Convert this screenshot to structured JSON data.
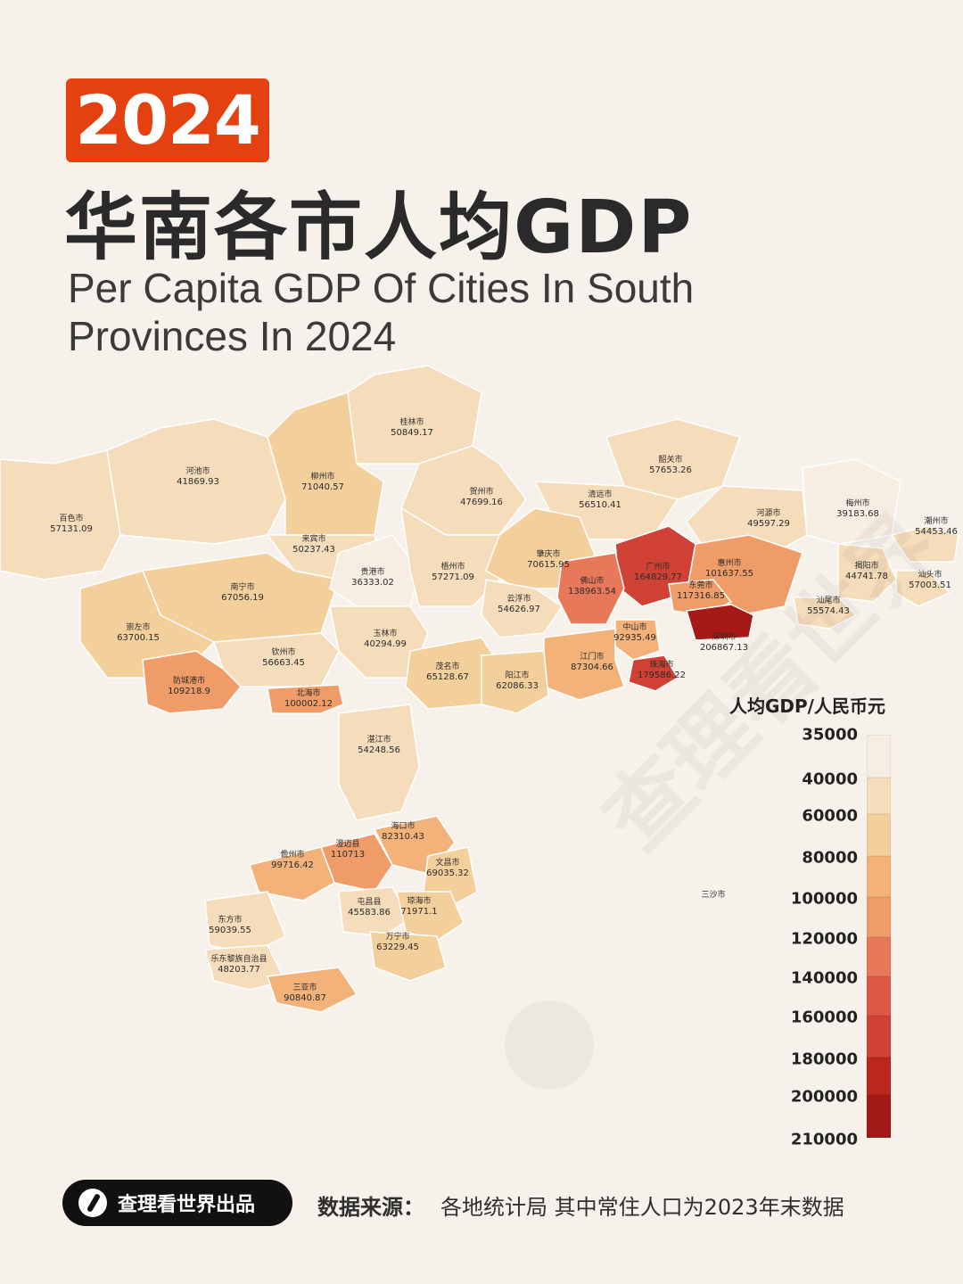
{
  "header": {
    "year": "2024",
    "title_zh": "华南各市人均GDP",
    "title_en": "Per Capita GDP Of Cities In South Provinces In 2024"
  },
  "legend": {
    "title": "人均GDP/人民币元",
    "ticks": [
      "35000",
      "40000",
      "60000",
      "80000",
      "100000",
      "120000",
      "140000",
      "160000",
      "180000",
      "200000",
      "210000"
    ],
    "colors": [
      "#f7ede2",
      "#f5dcba",
      "#f3cf9c",
      "#f2b27a",
      "#ef9c68",
      "#e8785a",
      "#dc5a45",
      "#cf4134",
      "#b9271f",
      "#a51a17",
      "#a11a17"
    ]
  },
  "chart_data": {
    "type": "choropleth",
    "unit": "人民币元",
    "regions": [
      {
        "name": "百色市",
        "value": "57131.09"
      },
      {
        "name": "河池市",
        "value": "41869.93"
      },
      {
        "name": "柳州市",
        "value": "71040.57"
      },
      {
        "name": "桂林市",
        "value": "50849.17"
      },
      {
        "name": "贺州市",
        "value": "47699.16"
      },
      {
        "name": "来宾市",
        "value": "50237.43"
      },
      {
        "name": "南宁市",
        "value": "67056.19"
      },
      {
        "name": "贵港市",
        "value": "36333.02"
      },
      {
        "name": "梧州市",
        "value": "57271.09"
      },
      {
        "name": "崇左市",
        "value": "63700.15"
      },
      {
        "name": "玉林市",
        "value": "40294.99"
      },
      {
        "name": "钦州市",
        "value": "56663.45"
      },
      {
        "name": "防城港市",
        "value": "109218.9"
      },
      {
        "name": "北海市",
        "value": "100002.12"
      },
      {
        "name": "韶关市",
        "value": "57653.26"
      },
      {
        "name": "清远市",
        "value": "56510.41"
      },
      {
        "name": "河源市",
        "value": "49597.29"
      },
      {
        "name": "梅州市",
        "value": "39183.68"
      },
      {
        "name": "潮州市",
        "value": "54453.46"
      },
      {
        "name": "肇庆市",
        "value": "70615.95"
      },
      {
        "name": "广州市",
        "value": "164829.77"
      },
      {
        "name": "惠州市",
        "value": "101637.55"
      },
      {
        "name": "揭阳市",
        "value": "44741.78"
      },
      {
        "name": "汕头市",
        "value": "57003.51"
      },
      {
        "name": "佛山市",
        "value": "138963.54"
      },
      {
        "name": "东莞市",
        "value": "117316.85"
      },
      {
        "name": "汕尾市",
        "value": "55574.43"
      },
      {
        "name": "云浮市",
        "value": "54626.97"
      },
      {
        "name": "中山市",
        "value": "92935.49"
      },
      {
        "name": "深圳市",
        "value": "206867.13"
      },
      {
        "name": "江门市",
        "value": "87304.66"
      },
      {
        "name": "珠海市",
        "value": "179586.22"
      },
      {
        "name": "茂名市",
        "value": "65128.67"
      },
      {
        "name": "阳江市",
        "value": "62086.33"
      },
      {
        "name": "湛江市",
        "value": "54248.56"
      },
      {
        "name": "海口市",
        "value": "82310.43"
      },
      {
        "name": "澄迈县",
        "value": "110713"
      },
      {
        "name": "儋州市",
        "value": "99716.42"
      },
      {
        "name": "文昌市",
        "value": "69035.32"
      },
      {
        "name": "屯昌县",
        "value": "45583.86"
      },
      {
        "name": "琼海市",
        "value": "71971.1"
      },
      {
        "name": "东方市",
        "value": "59039.55"
      },
      {
        "name": "万宁市",
        "value": "63229.45"
      },
      {
        "name": "乐东黎族自治县",
        "value": "48203.77"
      },
      {
        "name": "三亚市",
        "value": "90840.87"
      },
      {
        "name": "三沙市",
        "value": ""
      }
    ]
  },
  "watermark": "查理看世界",
  "footer": {
    "brand": "查理看世界出品",
    "source_label": "数据来源：",
    "source_text": "各地统计局  其中常住人口为2023年末数据"
  }
}
